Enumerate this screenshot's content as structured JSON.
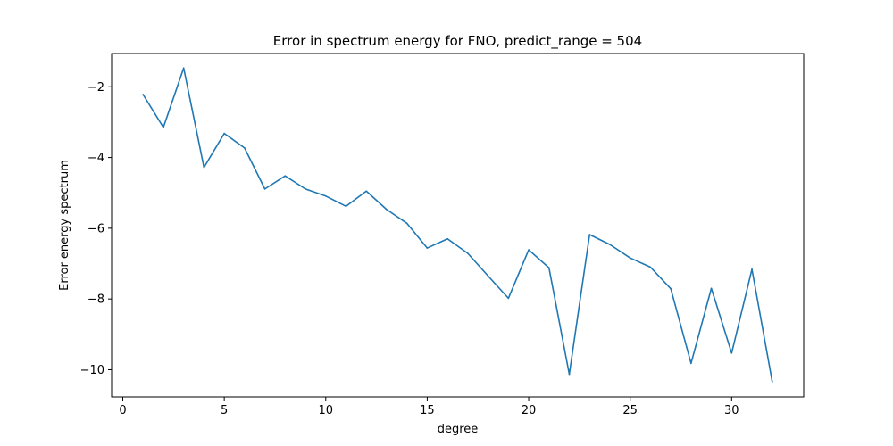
{
  "chart_data": {
    "type": "line",
    "title": "Error in spectrum energy for FNO, predict_range = 504",
    "xlabel": "degree",
    "ylabel": "Error energy spectrum",
    "xlim": [
      -0.55,
      33.55
    ],
    "ylim": [
      -10.77,
      -1.06
    ],
    "xticks": [
      0,
      5,
      10,
      15,
      20,
      25,
      30
    ],
    "yticks": [
      -2,
      -4,
      -6,
      -8,
      -10
    ],
    "xtick_labels": [
      "0",
      "5",
      "10",
      "15",
      "20",
      "25",
      "30"
    ],
    "ytick_labels": [
      "−2",
      "−4",
      "−6",
      "−8",
      "−10"
    ],
    "grid": false,
    "series": [
      {
        "color": "#1f77b4",
        "x": [
          1,
          2,
          3,
          4,
          5,
          6,
          7,
          8,
          9,
          10,
          11,
          12,
          13,
          14,
          15,
          16,
          17,
          18,
          19,
          20,
          21,
          22,
          23,
          24,
          25,
          26,
          27,
          28,
          29,
          30,
          31,
          32
        ],
        "y": [
          -2.22,
          -3.15,
          -1.47,
          -4.28,
          -3.32,
          -3.73,
          -4.89,
          -4.52,
          -4.89,
          -5.09,
          -5.38,
          -4.95,
          -5.47,
          -5.86,
          -6.56,
          -6.3,
          -6.71,
          -7.35,
          -7.98,
          -6.61,
          -7.12,
          -10.13,
          -6.18,
          -6.46,
          -6.84,
          -7.1,
          -7.71,
          -9.82,
          -7.7,
          -9.53,
          -7.16,
          -10.34
        ]
      }
    ]
  }
}
